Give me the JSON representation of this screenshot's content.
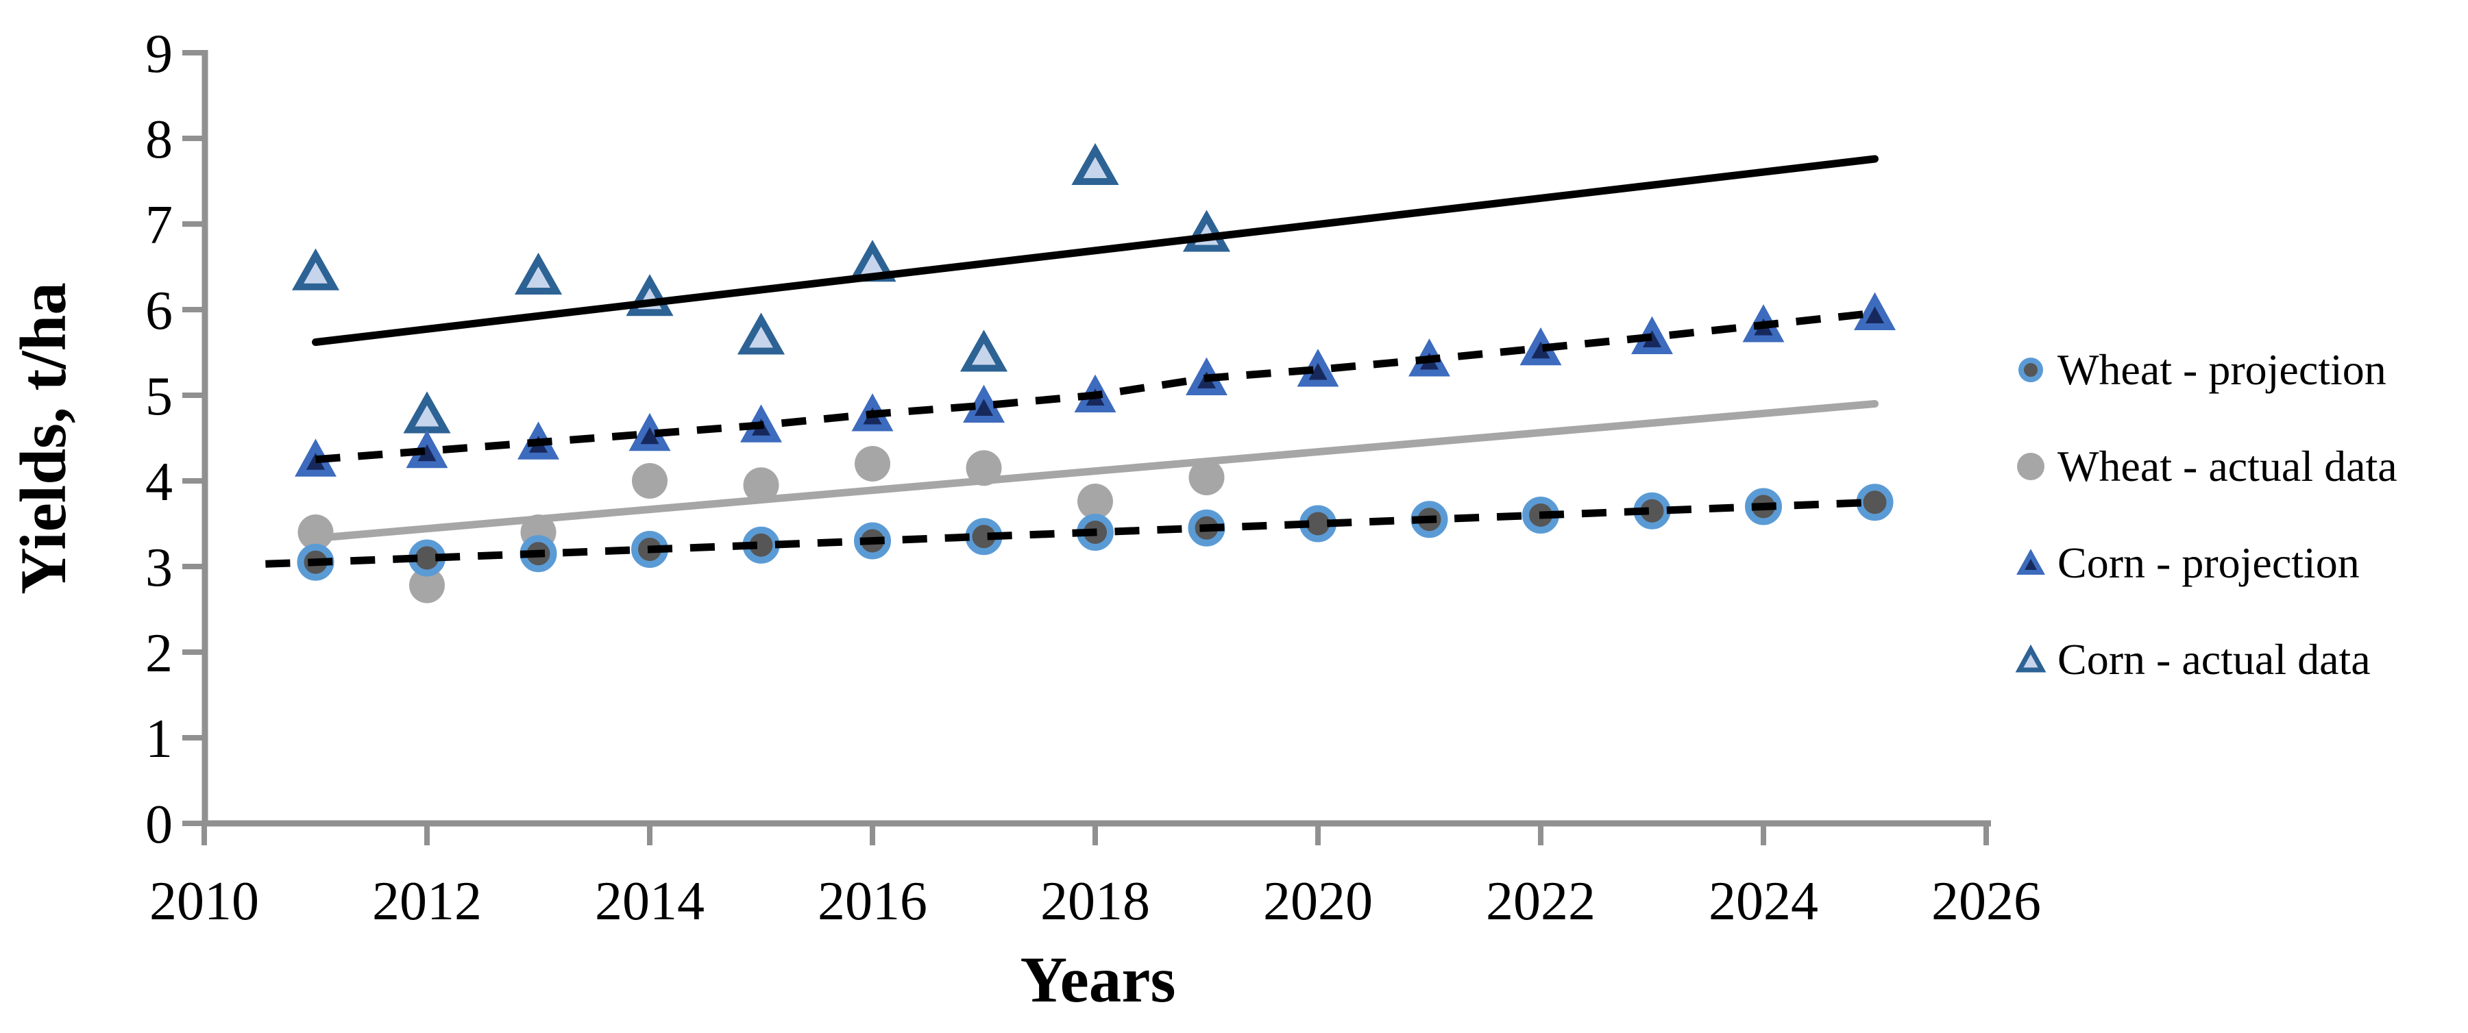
{
  "chart_data": {
    "type": "scatter",
    "title": "",
    "xlabel": "Years",
    "ylabel": "Yields, t/ha",
    "x_axis": {
      "min": 2010,
      "max": 2026,
      "tick_step": 2,
      "ticks": [
        2010,
        2012,
        2014,
        2016,
        2018,
        2020,
        2022,
        2024,
        2026
      ]
    },
    "y_axis": {
      "min": 0,
      "max": 9,
      "tick_step": 1,
      "ticks": [
        0,
        1,
        2,
        3,
        4,
        5,
        6,
        7,
        8,
        9
      ]
    },
    "grid": false,
    "axis_color": "#909090",
    "legend": {
      "position": "right"
    },
    "series": [
      {
        "name": "Wheat - projection",
        "role": "projection",
        "marker": "circle",
        "marker_fill": "#565656",
        "marker_edge": "#5B9BD5",
        "line_style": "dashed",
        "line_color": "#000000",
        "line_start": {
          "x": 2010.55,
          "value": 3.03
        },
        "x": [
          2011,
          2012,
          2013,
          2014,
          2015,
          2016,
          2017,
          2018,
          2019,
          2020,
          2021,
          2022,
          2023,
          2024,
          2025
        ],
        "values": [
          3.05,
          3.1,
          3.15,
          3.2,
          3.25,
          3.3,
          3.35,
          3.4,
          3.45,
          3.5,
          3.55,
          3.6,
          3.65,
          3.7,
          3.75
        ]
      },
      {
        "name": "Wheat - actual data",
        "role": "actual",
        "marker": "circle",
        "marker_fill": "#A6A6A6",
        "marker_edge": "none",
        "line_style": "none",
        "x": [
          2011,
          2012,
          2013,
          2014,
          2015,
          2016,
          2017,
          2018,
          2019
        ],
        "values": [
          3.4,
          2.78,
          3.4,
          4.0,
          3.95,
          4.2,
          4.15,
          3.76,
          4.04
        ]
      },
      {
        "name": "Corn - projection",
        "role": "projection",
        "marker": "triangle",
        "marker_fill": "#17295C",
        "marker_edge": "#3D6BBE",
        "line_style": "dashed",
        "line_color": "#000000",
        "line_start": {
          "x": 2011,
          "value": 4.25
        },
        "x": [
          2011,
          2012,
          2013,
          2014,
          2015,
          2016,
          2017,
          2018,
          2019,
          2020,
          2021,
          2022,
          2023,
          2024,
          2025
        ],
        "values": [
          4.25,
          4.35,
          4.45,
          4.55,
          4.65,
          4.78,
          4.88,
          5.0,
          5.2,
          5.3,
          5.42,
          5.55,
          5.68,
          5.82,
          5.96
        ]
      },
      {
        "name": "Corn - actual data",
        "role": "actual",
        "marker": "triangle",
        "marker_fill": "#C7D5EC",
        "marker_edge": "#2D6294",
        "line_style": "none",
        "x": [
          2011,
          2012,
          2013,
          2014,
          2015,
          2016,
          2017,
          2018,
          2019
        ],
        "values": [
          6.45,
          4.78,
          6.4,
          6.15,
          5.7,
          6.55,
          5.5,
          7.68,
          6.9
        ]
      }
    ],
    "trend_lines": [
      {
        "series": "Corn - actual data",
        "style": "solid",
        "color": "#000000",
        "x_start": 2011,
        "y_start": 5.62,
        "x_end": 2025,
        "y_end": 7.76
      },
      {
        "series": "Wheat - actual data",
        "style": "solid",
        "color": "#A6A6A6",
        "x_start": 2011,
        "y_start": 3.33,
        "x_end": 2025,
        "y_end": 4.9
      }
    ]
  }
}
